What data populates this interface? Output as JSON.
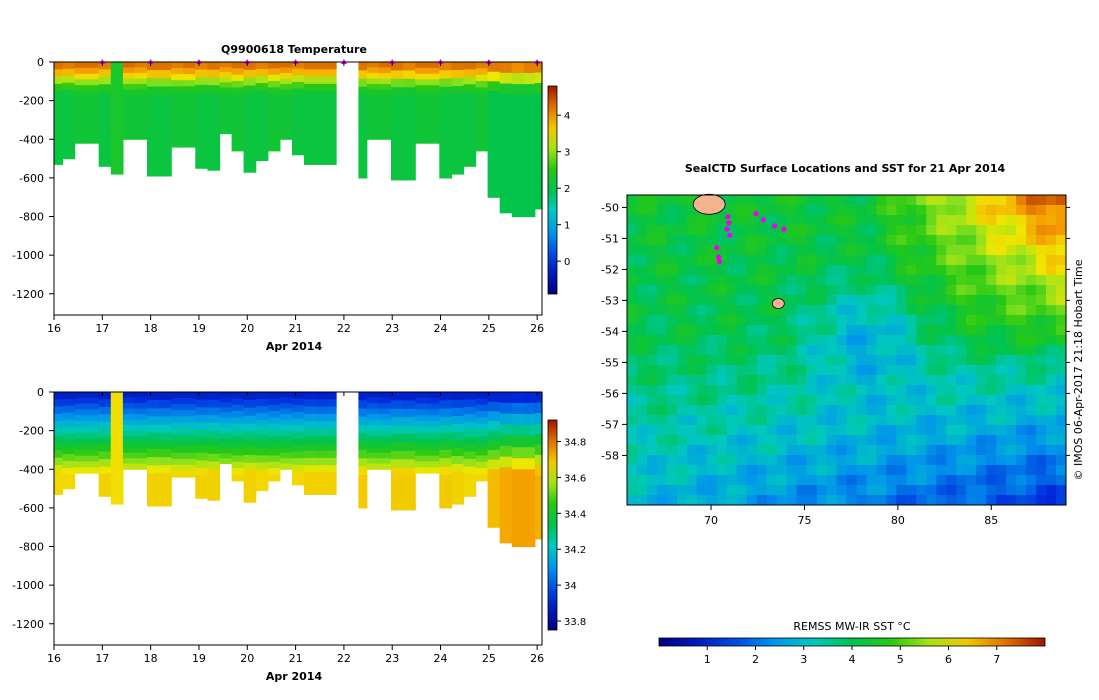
{
  "colors": {
    "axes": "#000000",
    "position_marker": "#ee00ee"
  },
  "chart_data": [
    {
      "type": "heatmap",
      "title": "Q9900618  Temperature",
      "xlabel": "Apr 2014",
      "x_ticks": [
        "16",
        "17",
        "18",
        "19",
        "20",
        "21",
        "22",
        "23",
        "24",
        "25",
        "26"
      ],
      "y_ticks": [
        "0",
        "-200",
        "-400",
        "-600",
        "-800",
        "-1000",
        "-1200"
      ],
      "xlim": [
        16,
        26.1
      ],
      "ylim": [
        -1310,
        0
      ],
      "colorbar": {
        "ticks": [
          "0",
          "1",
          "2",
          "3",
          "4"
        ],
        "range": [
          -0.9,
          4.8
        ]
      },
      "profile_days": [
        16.05,
        16.3,
        16.55,
        16.8,
        17.05,
        17.3,
        17.55,
        17.8,
        18.05,
        18.3,
        18.55,
        18.8,
        19.05,
        19.3,
        19.55,
        19.8,
        20.05,
        20.3,
        20.55,
        20.8,
        21.05,
        21.3,
        21.55,
        21.8,
        22.35,
        22.6,
        22.85,
        23.1,
        23.35,
        23.6,
        23.85,
        24.1,
        24.35,
        24.6,
        24.85,
        25.1,
        25.35,
        25.6,
        25.85,
        26.05
      ],
      "max_depth": [
        530,
        500,
        420,
        420,
        540,
        580,
        400,
        400,
        590,
        590,
        440,
        440,
        550,
        560,
        370,
        460,
        570,
        510,
        460,
        400,
        480,
        530,
        530,
        530,
        600,
        400,
        400,
        610,
        610,
        420,
        420,
        600,
        580,
        540,
        460,
        700,
        780,
        800,
        800,
        760
      ],
      "surface_temp_c": [
        4.3,
        4.2,
        4.3,
        4.3,
        4.2,
        2.3,
        4.3,
        4.2,
        4.3,
        4.3,
        4.2,
        4.3,
        4.2,
        4.3,
        4.2,
        4.3,
        4.3,
        4.2,
        4.3,
        4.3,
        4.2,
        4.3,
        4.3,
        4.3,
        4.3,
        4.2,
        4.3,
        4.3,
        4.2,
        4.3,
        4.3,
        4.2,
        4.3,
        4.3,
        4.2,
        4.3,
        4.3,
        4.2,
        4.3,
        4.3
      ],
      "deep_temp_c": [
        2.1,
        2.1,
        2.2,
        2.2,
        2.1,
        2.3,
        2.2,
        2.2,
        2.1,
        2.1,
        2.2,
        2.2,
        2.1,
        2.1,
        2.2,
        2.2,
        2.1,
        2.1,
        2.2,
        2.2,
        2.1,
        2.1,
        2.1,
        2.1,
        2.1,
        2.2,
        2.2,
        2.1,
        2.1,
        2.2,
        2.2,
        2.1,
        2.1,
        2.1,
        2.2,
        2.0,
        2.0,
        2.0,
        2.0,
        2.0
      ],
      "surface_markers": [
        17,
        18,
        19,
        20,
        21,
        22,
        23,
        24,
        25,
        26
      ]
    },
    {
      "type": "heatmap",
      "title": "",
      "xlabel": "Apr 2014",
      "x_ticks": [
        "16",
        "17",
        "18",
        "19",
        "20",
        "21",
        "22",
        "23",
        "24",
        "25",
        "26"
      ],
      "y_ticks": [
        "0",
        "-200",
        "-400",
        "-600",
        "-800",
        "-1000",
        "-1200"
      ],
      "xlim": [
        16,
        26.1
      ],
      "ylim": [
        -1310,
        0
      ],
      "colorbar": {
        "ticks": [
          "33.8",
          "34",
          "34.2",
          "34.4",
          "34.6",
          "34.8"
        ],
        "range": [
          33.75,
          34.92
        ]
      },
      "surface_salinity": [
        33.85,
        33.85,
        33.86,
        33.86,
        33.85,
        34.65,
        33.86,
        33.85,
        33.86,
        33.85,
        33.86,
        33.86,
        33.85,
        33.86,
        33.85,
        33.86,
        33.85,
        33.86,
        33.85,
        33.86,
        33.85,
        33.86,
        33.85,
        33.86,
        33.85,
        33.86,
        33.85,
        33.86,
        33.85,
        33.86,
        33.85,
        33.86,
        33.85,
        33.86,
        33.85,
        33.86,
        33.85,
        33.86,
        33.85,
        33.86
      ],
      "deep_salinity": [
        34.66,
        34.66,
        34.66,
        34.66,
        34.67,
        34.65,
        34.66,
        34.66,
        34.67,
        34.67,
        34.66,
        34.66,
        34.67,
        34.67,
        34.66,
        34.66,
        34.67,
        34.66,
        34.66,
        34.66,
        34.66,
        34.67,
        34.67,
        34.67,
        34.68,
        34.66,
        34.66,
        34.68,
        34.68,
        34.66,
        34.66,
        34.68,
        34.67,
        34.66,
        34.66,
        34.7,
        34.73,
        34.74,
        34.74,
        34.72
      ]
    },
    {
      "type": "heatmap",
      "title": "SealCTD Surface Locations and SST for 21 Apr 2014",
      "x_ticks": [
        "70",
        "75",
        "80",
        "85"
      ],
      "y_ticks": [
        "-50",
        "-51",
        "-52",
        "-53",
        "-54",
        "-55",
        "-56",
        "-57",
        "-58"
      ],
      "xlim": [
        65.5,
        89
      ],
      "ylim": [
        -59.6,
        -49.6
      ],
      "credit": "© IMOS 06-Apr-2017 21:18 Hobart Time",
      "colorbar": {
        "label": "REMSS MW-IR SST °C",
        "ticks": [
          "1",
          "2",
          "3",
          "4",
          "5",
          "6",
          "7"
        ],
        "range": [
          0,
          8
        ]
      },
      "seal_positions": [
        [
          70.9,
          -50.3
        ],
        [
          70.95,
          -50.5
        ],
        [
          70.85,
          -50.7
        ],
        [
          71.0,
          -50.9
        ],
        [
          70.4,
          -51.6
        ],
        [
          70.45,
          -51.75
        ],
        [
          70.3,
          -51.3
        ],
        [
          72.4,
          -50.2
        ],
        [
          72.8,
          -50.4
        ],
        [
          73.4,
          -50.6
        ],
        [
          73.9,
          -50.7
        ]
      ],
      "land_patches": [
        [
          69.9,
          -49.9
        ],
        [
          73.6,
          -53.1
        ]
      ]
    }
  ]
}
